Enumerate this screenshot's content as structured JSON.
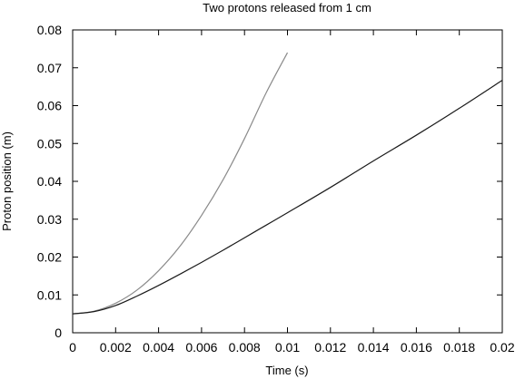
{
  "chart_data": {
    "type": "line",
    "title": "Two protons released from 1 cm",
    "xlabel": "Time (s)",
    "ylabel": "Proton position (m)",
    "xlim": [
      0,
      0.02
    ],
    "ylim": [
      0,
      0.08
    ],
    "x_ticks": [
      "0",
      "0.002",
      "0.004",
      "0.006",
      "0.008",
      "0.01",
      "0.012",
      "0.014",
      "0.016",
      "0.018",
      "0.02"
    ],
    "y_ticks": [
      "0",
      "0.01",
      "0.02",
      "0.03",
      "0.04",
      "0.05",
      "0.06",
      "0.07",
      "0.08"
    ],
    "grid": false,
    "legend": "none",
    "series": [
      {
        "color": "#8a8a8a",
        "x": [
          0,
          0.001,
          0.002,
          0.003,
          0.004,
          0.005,
          0.006,
          0.007,
          0.008,
          0.009,
          0.01
        ],
        "y": [
          0.005,
          0.0057,
          0.0078,
          0.0113,
          0.0164,
          0.0229,
          0.031,
          0.0404,
          0.0513,
          0.0633,
          0.074
        ]
      },
      {
        "color": "#1a1a1a",
        "x": [
          0,
          0.001,
          0.002,
          0.003,
          0.004,
          0.005,
          0.006,
          0.007,
          0.008,
          0.009,
          0.01,
          0.012,
          0.014,
          0.016,
          0.018,
          0.02
        ],
        "y": [
          0.005,
          0.0056,
          0.0072,
          0.0097,
          0.0125,
          0.0155,
          0.0186,
          0.0218,
          0.0251,
          0.0284,
          0.0317,
          0.0384,
          0.0454,
          0.0522,
          0.0593,
          0.0667
        ]
      }
    ]
  }
}
